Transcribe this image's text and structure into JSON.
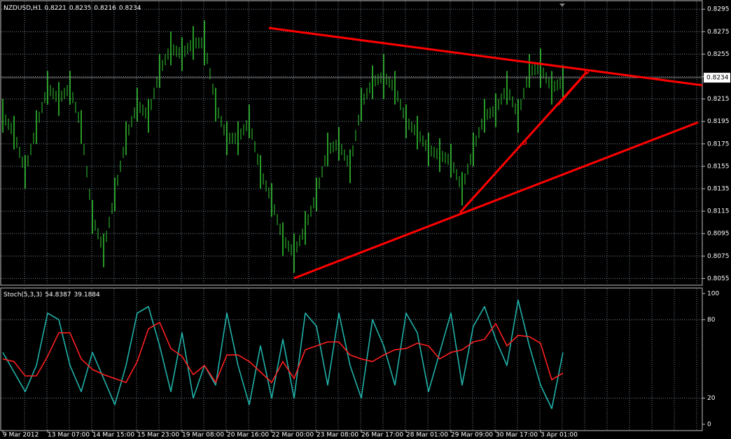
{
  "chart_data": [
    {
      "type": "ohlc",
      "symbol": "NZDUSD,H1",
      "ohlc": [
        0.8221,
        0.8235,
        0.8216,
        0.8234
      ],
      "color": "#32cd32",
      "high": [
        0.8215,
        0.82,
        0.8165,
        0.8205,
        0.824,
        0.823,
        0.824,
        0.8205,
        0.8125,
        0.8095,
        0.8145,
        0.8195,
        0.8225,
        0.8215,
        0.8255,
        0.8275,
        0.827,
        0.828,
        0.8285,
        0.8225,
        0.8195,
        0.8195,
        0.821,
        0.8165,
        0.814,
        0.8105,
        0.8095,
        0.8115,
        0.8145,
        0.8185,
        0.819,
        0.817,
        0.8225,
        0.8245,
        0.8255,
        0.824,
        0.821,
        0.82,
        0.8185,
        0.818,
        0.8175,
        0.815,
        0.8185,
        0.8215,
        0.822,
        0.824,
        0.8215,
        0.8255,
        0.826,
        0.824,
        0.8245
      ],
      "low": [
        0.8185,
        0.817,
        0.8135,
        0.8175,
        0.821,
        0.82,
        0.821,
        0.8175,
        0.8095,
        0.8065,
        0.8115,
        0.8165,
        0.8195,
        0.8185,
        0.8225,
        0.8245,
        0.824,
        0.825,
        0.8245,
        0.8195,
        0.8165,
        0.8165,
        0.818,
        0.8135,
        0.811,
        0.8075,
        0.806,
        0.8085,
        0.8115,
        0.8155,
        0.816,
        0.814,
        0.8195,
        0.8215,
        0.8215,
        0.821,
        0.818,
        0.817,
        0.8155,
        0.815,
        0.8145,
        0.812,
        0.8155,
        0.8185,
        0.819,
        0.821,
        0.8185,
        0.8225,
        0.8225,
        0.821,
        0.8215
      ],
      "current_price": 0.8234,
      "ylim": [
        0.8049,
        0.8302
      ],
      "yticks": [
        0.8295,
        0.8275,
        0.8255,
        0.8235,
        0.8215,
        0.8195,
        0.8175,
        0.8155,
        0.8135,
        0.8115,
        0.8095,
        0.8075,
        0.8055
      ],
      "grid": true
    },
    {
      "type": "line",
      "indicator": "Stoch(5,3,3)",
      "series": [
        {
          "color": "#20b2aa",
          "values": [
            55,
            40,
            25,
            45,
            85,
            80,
            45,
            25,
            55,
            35,
            15,
            45,
            85,
            90,
            60,
            25,
            70,
            20,
            45,
            30,
            85,
            45,
            15,
            60,
            20,
            65,
            20,
            85,
            75,
            30,
            85,
            45,
            20,
            80,
            60,
            30,
            85,
            70,
            25,
            55,
            85,
            30,
            75,
            90,
            65,
            45,
            95,
            60,
            30,
            12,
            54.8387
          ]
        },
        {
          "color": "#ff2020",
          "values": [
            50,
            48,
            37,
            37,
            52,
            70,
            70,
            50,
            42,
            38,
            35,
            32,
            48,
            73,
            78,
            58,
            52,
            38,
            45,
            32,
            53,
            53,
            48,
            40,
            32,
            48,
            35,
            57,
            60,
            63,
            63,
            53,
            50,
            48,
            53,
            57,
            58,
            62,
            60,
            50,
            55,
            57,
            63,
            65,
            77,
            60,
            68,
            67,
            62,
            34,
            39.1884
          ]
        }
      ],
      "ylim": [
        -4.3,
        103.7
      ],
      "yticks": [
        0,
        20,
        80,
        100
      ],
      "levels": [
        20,
        80
      ],
      "x_labels": [
        "9 Mar 2012",
        "13 Mar 07:00",
        "14 Mar 15:00",
        "15 Mar 23:00",
        "19 Mar 08:00",
        "20 Mar 16:00",
        "22 Mar 00:00",
        "23 Mar 08:00",
        "26 Mar 17:00",
        "28 Mar 01:00",
        "29 Mar 09:00",
        "30 Mar 17:00",
        "3 Apr 01:00"
      ]
    }
  ]
}
